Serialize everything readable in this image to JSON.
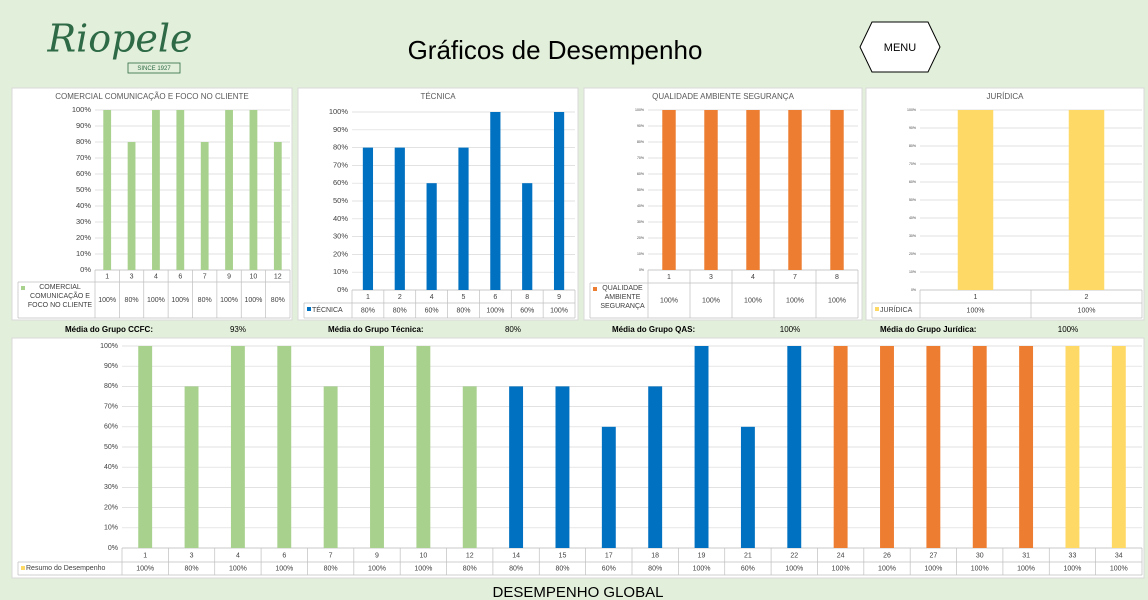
{
  "header": {
    "logo": "Riopele",
    "logo_since": "SINCE 1927",
    "title": "Gráficos de Desempenho",
    "menu": "MENU"
  },
  "averages": [
    {
      "label": "Média do Grupo CCFC:",
      "value": "93%"
    },
    {
      "label": "Média do Grupo Técnica:",
      "value": "80%"
    },
    {
      "label": "Média do Grupo QAS:",
      "value": "100%"
    },
    {
      "label": "Média do Grupo Jurídica:",
      "value": "100%"
    }
  ],
  "chart_data": [
    {
      "type": "bar",
      "title": "COMERCIAL COMUNICAÇÃO E FOCO NO CLIENTE",
      "categories": [
        "1",
        "3",
        "4",
        "6",
        "7",
        "9",
        "10",
        "12"
      ],
      "series": [
        {
          "name": "COMERCIAL COMUNICAÇÃO E FOCO NO CLIENTE",
          "color": "#a9d18e",
          "values": [
            100,
            80,
            100,
            100,
            80,
            100,
            100,
            80
          ],
          "value_labels": [
            "100%",
            "80%",
            "100%",
            "100%",
            "80%",
            "100%",
            "100%",
            "80%"
          ]
        }
      ],
      "ylim": [
        0,
        100
      ],
      "yticks": [
        {
          "value": 0,
          "label": "0%"
        },
        {
          "value": 10,
          "label": "10%"
        },
        {
          "value": 20,
          "label": "20%"
        },
        {
          "value": 30,
          "label": "30%"
        },
        {
          "value": 40,
          "label": "40%"
        },
        {
          "value": 50,
          "label": "50%"
        },
        {
          "value": 60,
          "label": "60%"
        },
        {
          "value": 70,
          "label": "70%"
        },
        {
          "value": 80,
          "label": "80%"
        },
        {
          "value": 90,
          "label": "90%"
        },
        {
          "value": 100,
          "label": "100%"
        }
      ],
      "grid": true
    },
    {
      "type": "bar",
      "title": "TÉCNICA",
      "categories": [
        "1",
        "2",
        "4",
        "5",
        "6",
        "8",
        "9"
      ],
      "series": [
        {
          "name": "TÉCNICA",
          "color": "#0070c0",
          "values": [
            80,
            80,
            60,
            80,
            100,
            60,
            100
          ],
          "value_labels": [
            "80%",
            "80%",
            "60%",
            "80%",
            "100%",
            "60%",
            "100%"
          ]
        }
      ],
      "ylim": [
        0,
        100
      ],
      "yticks": [
        {
          "value": 0,
          "label": "0%"
        },
        {
          "value": 10,
          "label": "10%"
        },
        {
          "value": 20,
          "label": "20%"
        },
        {
          "value": 30,
          "label": "30%"
        },
        {
          "value": 40,
          "label": "40%"
        },
        {
          "value": 50,
          "label": "50%"
        },
        {
          "value": 60,
          "label": "60%"
        },
        {
          "value": 70,
          "label": "70%"
        },
        {
          "value": 80,
          "label": "80%"
        },
        {
          "value": 90,
          "label": "90%"
        },
        {
          "value": 100,
          "label": "100%"
        }
      ],
      "grid": true
    },
    {
      "type": "bar",
      "title": "QUALIDADE  AMBIENTE  SEGURANÇA",
      "categories": [
        "1",
        "3",
        "4",
        "7",
        "8"
      ],
      "series": [
        {
          "name": "QUALIDADE AMBIENTE SEGURANÇA",
          "color": "#ed7d31",
          "values": [
            100,
            100,
            100,
            100,
            100
          ],
          "value_labels": [
            "100%",
            "100%",
            "100%",
            "100%",
            "100%"
          ]
        }
      ],
      "ylim": [
        0,
        100
      ],
      "yticks": [
        {
          "value": 0,
          "label": "0%"
        },
        {
          "value": 10,
          "label": "10%"
        },
        {
          "value": 20,
          "label": "20%"
        },
        {
          "value": 30,
          "label": "30%"
        },
        {
          "value": 40,
          "label": "40%"
        },
        {
          "value": 50,
          "label": "50%"
        },
        {
          "value": 60,
          "label": "60%"
        },
        {
          "value": 70,
          "label": "70%"
        },
        {
          "value": 80,
          "label": "80%"
        },
        {
          "value": 90,
          "label": "90%"
        },
        {
          "value": 100,
          "label": "100%"
        }
      ],
      "grid": true
    },
    {
      "type": "bar",
      "title": "JURÍDICA",
      "categories": [
        "1",
        "2"
      ],
      "series": [
        {
          "name": "JURÍDICA",
          "color": "#ffd966",
          "values": [
            100,
            100
          ],
          "value_labels": [
            "100%",
            "100%"
          ]
        }
      ],
      "ylim": [
        0,
        100
      ],
      "yticks": [
        {
          "value": 0,
          "label": "0%"
        },
        {
          "value": 10,
          "label": "10%"
        },
        {
          "value": 20,
          "label": "20%"
        },
        {
          "value": 30,
          "label": "30%"
        },
        {
          "value": 40,
          "label": "40%"
        },
        {
          "value": 50,
          "label": "50%"
        },
        {
          "value": 60,
          "label": "60%"
        },
        {
          "value": 70,
          "label": "70%"
        },
        {
          "value": 80,
          "label": "80%"
        },
        {
          "value": 90,
          "label": "90%"
        },
        {
          "value": 100,
          "label": "100%"
        }
      ],
      "grid": true
    },
    {
      "type": "bar",
      "title": "DESEMPENHO GLOBAL",
      "categories": [
        "1",
        "3",
        "4",
        "6",
        "7",
        "9",
        "10",
        "12",
        "14",
        "15",
        "17",
        "18",
        "19",
        "21",
        "22",
        "24",
        "26",
        "27",
        "30",
        "31",
        "33",
        "34"
      ],
      "series": [
        {
          "name": "Resumo do Desempenho",
          "color": "#ffd966",
          "colors": [
            "#a9d18e",
            "#a9d18e",
            "#a9d18e",
            "#a9d18e",
            "#a9d18e",
            "#a9d18e",
            "#a9d18e",
            "#a9d18e",
            "#0070c0",
            "#0070c0",
            "#0070c0",
            "#0070c0",
            "#0070c0",
            "#0070c0",
            "#0070c0",
            "#ed7d31",
            "#ed7d31",
            "#ed7d31",
            "#ed7d31",
            "#ed7d31",
            "#ffd966",
            "#ffd966"
          ],
          "values": [
            100,
            80,
            100,
            100,
            80,
            100,
            100,
            80,
            80,
            80,
            60,
            80,
            100,
            60,
            100,
            100,
            100,
            100,
            100,
            100,
            100,
            100
          ],
          "value_labels": [
            "100%",
            "80%",
            "100%",
            "100%",
            "80%",
            "100%",
            "100%",
            "80%",
            "80%",
            "80%",
            "60%",
            "80%",
            "100%",
            "60%",
            "100%",
            "100%",
            "100%",
            "100%",
            "100%",
            "100%",
            "100%",
            "100%"
          ]
        }
      ],
      "ylim": [
        0,
        100
      ],
      "yticks": [
        {
          "value": 0,
          "label": "0%"
        },
        {
          "value": 10,
          "label": "10%"
        },
        {
          "value": 20,
          "label": "20%"
        },
        {
          "value": 30,
          "label": "30%"
        },
        {
          "value": 40,
          "label": "40%"
        },
        {
          "value": 50,
          "label": "50%"
        },
        {
          "value": 60,
          "label": "60%"
        },
        {
          "value": 70,
          "label": "70%"
        },
        {
          "value": 80,
          "label": "80%"
        },
        {
          "value": 90,
          "label": "90%"
        },
        {
          "value": 100,
          "label": "100%"
        }
      ],
      "grid": true
    }
  ]
}
